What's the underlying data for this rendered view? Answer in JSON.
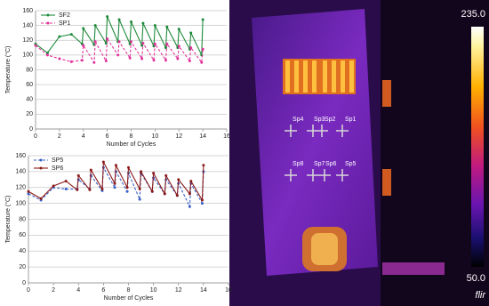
{
  "chart_data": [
    {
      "type": "line",
      "xlabel": "Number of Cycles",
      "ylabel": "Temperature (°C)",
      "xlim": [
        0,
        16
      ],
      "xticks": [
        0,
        2,
        4,
        6,
        8,
        10,
        12,
        14,
        16
      ],
      "ylim": [
        0,
        160
      ],
      "yticks": [
        0,
        20,
        40,
        60,
        80,
        100,
        120,
        140,
        160
      ],
      "grid": true,
      "legend": "upper left",
      "series": [
        {
          "name": "SF2",
          "color": "#1e8a3a",
          "dashed": false,
          "x": [
            0,
            1,
            2,
            3,
            3.9,
            4,
            4.9,
            5,
            5.9,
            6,
            6.9,
            7,
            7.9,
            8,
            8.9,
            9,
            9.9,
            10,
            10.9,
            11,
            11.9,
            12,
            12.9,
            13,
            13.9,
            14
          ],
          "values": [
            115,
            103,
            125,
            128,
            115,
            136,
            114,
            140,
            116,
            152,
            118,
            148,
            115,
            145,
            113,
            143,
            112,
            140,
            110,
            138,
            110,
            135,
            108,
            130,
            100,
            148
          ]
        },
        {
          "name": "SP1",
          "color": "#e0309a",
          "dashed": true,
          "x": [
            0,
            1,
            2,
            3,
            3.9,
            4,
            4.9,
            5,
            5.9,
            6,
            6.9,
            7,
            7.9,
            8,
            8.9,
            9,
            9.9,
            10,
            10.9,
            11,
            11.9,
            12,
            12.9,
            13,
            13.9,
            14
          ],
          "values": [
            113,
            100,
            95,
            91,
            93,
            113,
            90,
            118,
            92,
            122,
            100,
            118,
            96,
            118,
            95,
            116,
            93,
            115,
            93,
            115,
            95,
            112,
            92,
            110,
            90,
            108
          ]
        }
      ]
    },
    {
      "type": "line",
      "xlabel": "Number of Cycles",
      "ylabel": "Temperature (°C)",
      "xlim": [
        0,
        16
      ],
      "xticks": [
        0,
        2,
        4,
        6,
        8,
        10,
        12,
        14,
        16
      ],
      "ylim": [
        0,
        160
      ],
      "yticks": [
        0,
        20,
        40,
        60,
        80,
        100,
        120,
        140,
        160
      ],
      "grid": true,
      "legend": "upper left",
      "series": [
        {
          "name": "SP5",
          "color": "#3b5fc4",
          "dashed": true,
          "x": [
            0,
            1,
            2,
            3,
            3.9,
            4,
            4.9,
            5,
            5.9,
            6,
            6.9,
            7,
            7.9,
            8,
            8.9,
            9,
            9.9,
            10,
            10.9,
            11,
            11.9,
            12,
            12.9,
            13,
            13.9,
            14
          ],
          "values": [
            112,
            104,
            120,
            118,
            118,
            130,
            118,
            135,
            116,
            145,
            120,
            140,
            115,
            138,
            105,
            138,
            115,
            132,
            112,
            130,
            110,
            125,
            96,
            125,
            100,
            140
          ]
        },
        {
          "name": "SP6",
          "color": "#8b1a1a",
          "dashed": false,
          "x": [
            0,
            1,
            2,
            3,
            3.9,
            4,
            4.9,
            5,
            5.9,
            6,
            6.9,
            7,
            7.9,
            8,
            8.9,
            9,
            9.9,
            10,
            10.9,
            11,
            11.9,
            12,
            12.9,
            13,
            13.9,
            14
          ],
          "values": [
            115,
            106,
            122,
            128,
            117,
            135,
            117,
            142,
            118,
            152,
            125,
            148,
            120,
            145,
            118,
            140,
            115,
            138,
            112,
            135,
            110,
            130,
            112,
            128,
            104,
            148
          ]
        }
      ]
    }
  ],
  "thermal_image": {
    "spot_labels": [
      "Sp4",
      "Sp3",
      "Sp2",
      "Sp1",
      "Sp8",
      "Sp7",
      "Sp6",
      "Sp5"
    ],
    "scale_max": "235.0",
    "scale_min": "50.0",
    "logo": "flir"
  }
}
